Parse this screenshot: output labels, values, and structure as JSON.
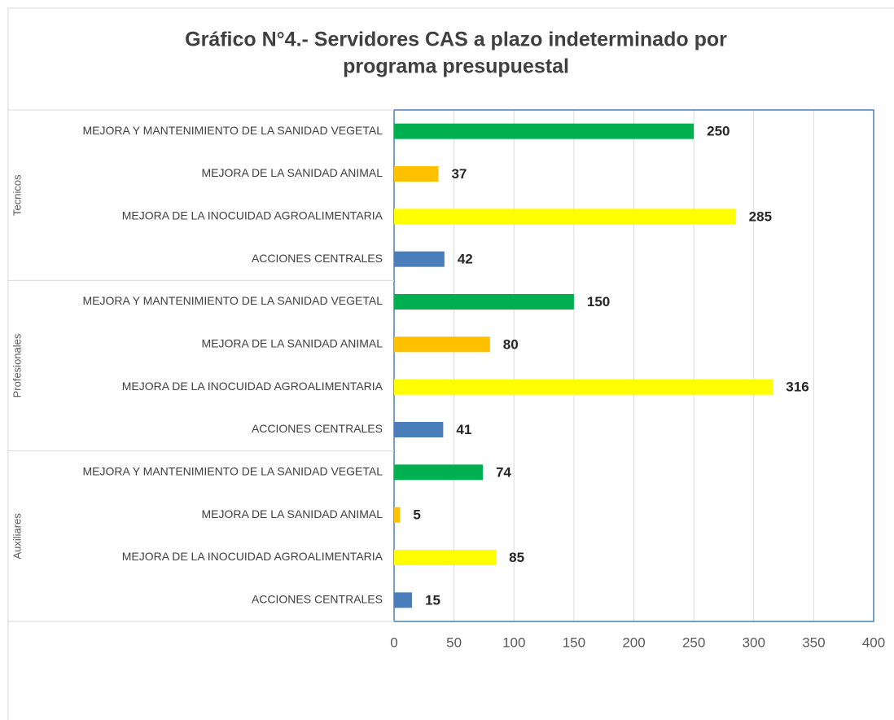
{
  "chart_data": {
    "type": "bar",
    "orientation": "horizontal",
    "title": [
      "Gráfico N°4.- Servidores CAS a plazo indeterminado por",
      "programa presupuestal"
    ],
    "groups": [
      {
        "name": "Tecnicos",
        "categories": [
          "MEJORA Y MANTENIMIENTO DE LA SANIDAD VEGETAL",
          "MEJORA DE LA SANIDAD ANIMAL",
          "MEJORA DE LA INOCUIDAD AGROALIMENTARIA",
          "ACCIONES CENTRALES"
        ],
        "values": [
          250,
          37,
          285,
          42
        ],
        "colors": [
          "#00b050",
          "#ffc000",
          "#ffff00",
          "#4a7ebb"
        ]
      },
      {
        "name": "Profesionales",
        "categories": [
          "MEJORA Y MANTENIMIENTO DE LA SANIDAD VEGETAL",
          "MEJORA DE LA SANIDAD ANIMAL",
          "MEJORA DE LA INOCUIDAD AGROALIMENTARIA",
          "ACCIONES CENTRALES"
        ],
        "values": [
          150,
          80,
          316,
          41
        ],
        "colors": [
          "#00b050",
          "#ffc000",
          "#ffff00",
          "#4a7ebb"
        ]
      },
      {
        "name": "Auxiliares",
        "categories": [
          "MEJORA Y MANTENIMIENTO DE LA SANIDAD VEGETAL",
          "MEJORA DE LA SANIDAD ANIMAL",
          "MEJORA DE LA INOCUIDAD AGROALIMENTARIA",
          "ACCIONES CENTRALES"
        ],
        "values": [
          74,
          5,
          85,
          15
        ],
        "colors": [
          "#00b050",
          "#ffc000",
          "#ffff00",
          "#4a7ebb"
        ]
      }
    ],
    "xlim": [
      0,
      400
    ],
    "xticks": [
      0,
      50,
      100,
      150,
      200,
      250,
      300,
      350,
      400
    ],
    "grid": true
  }
}
